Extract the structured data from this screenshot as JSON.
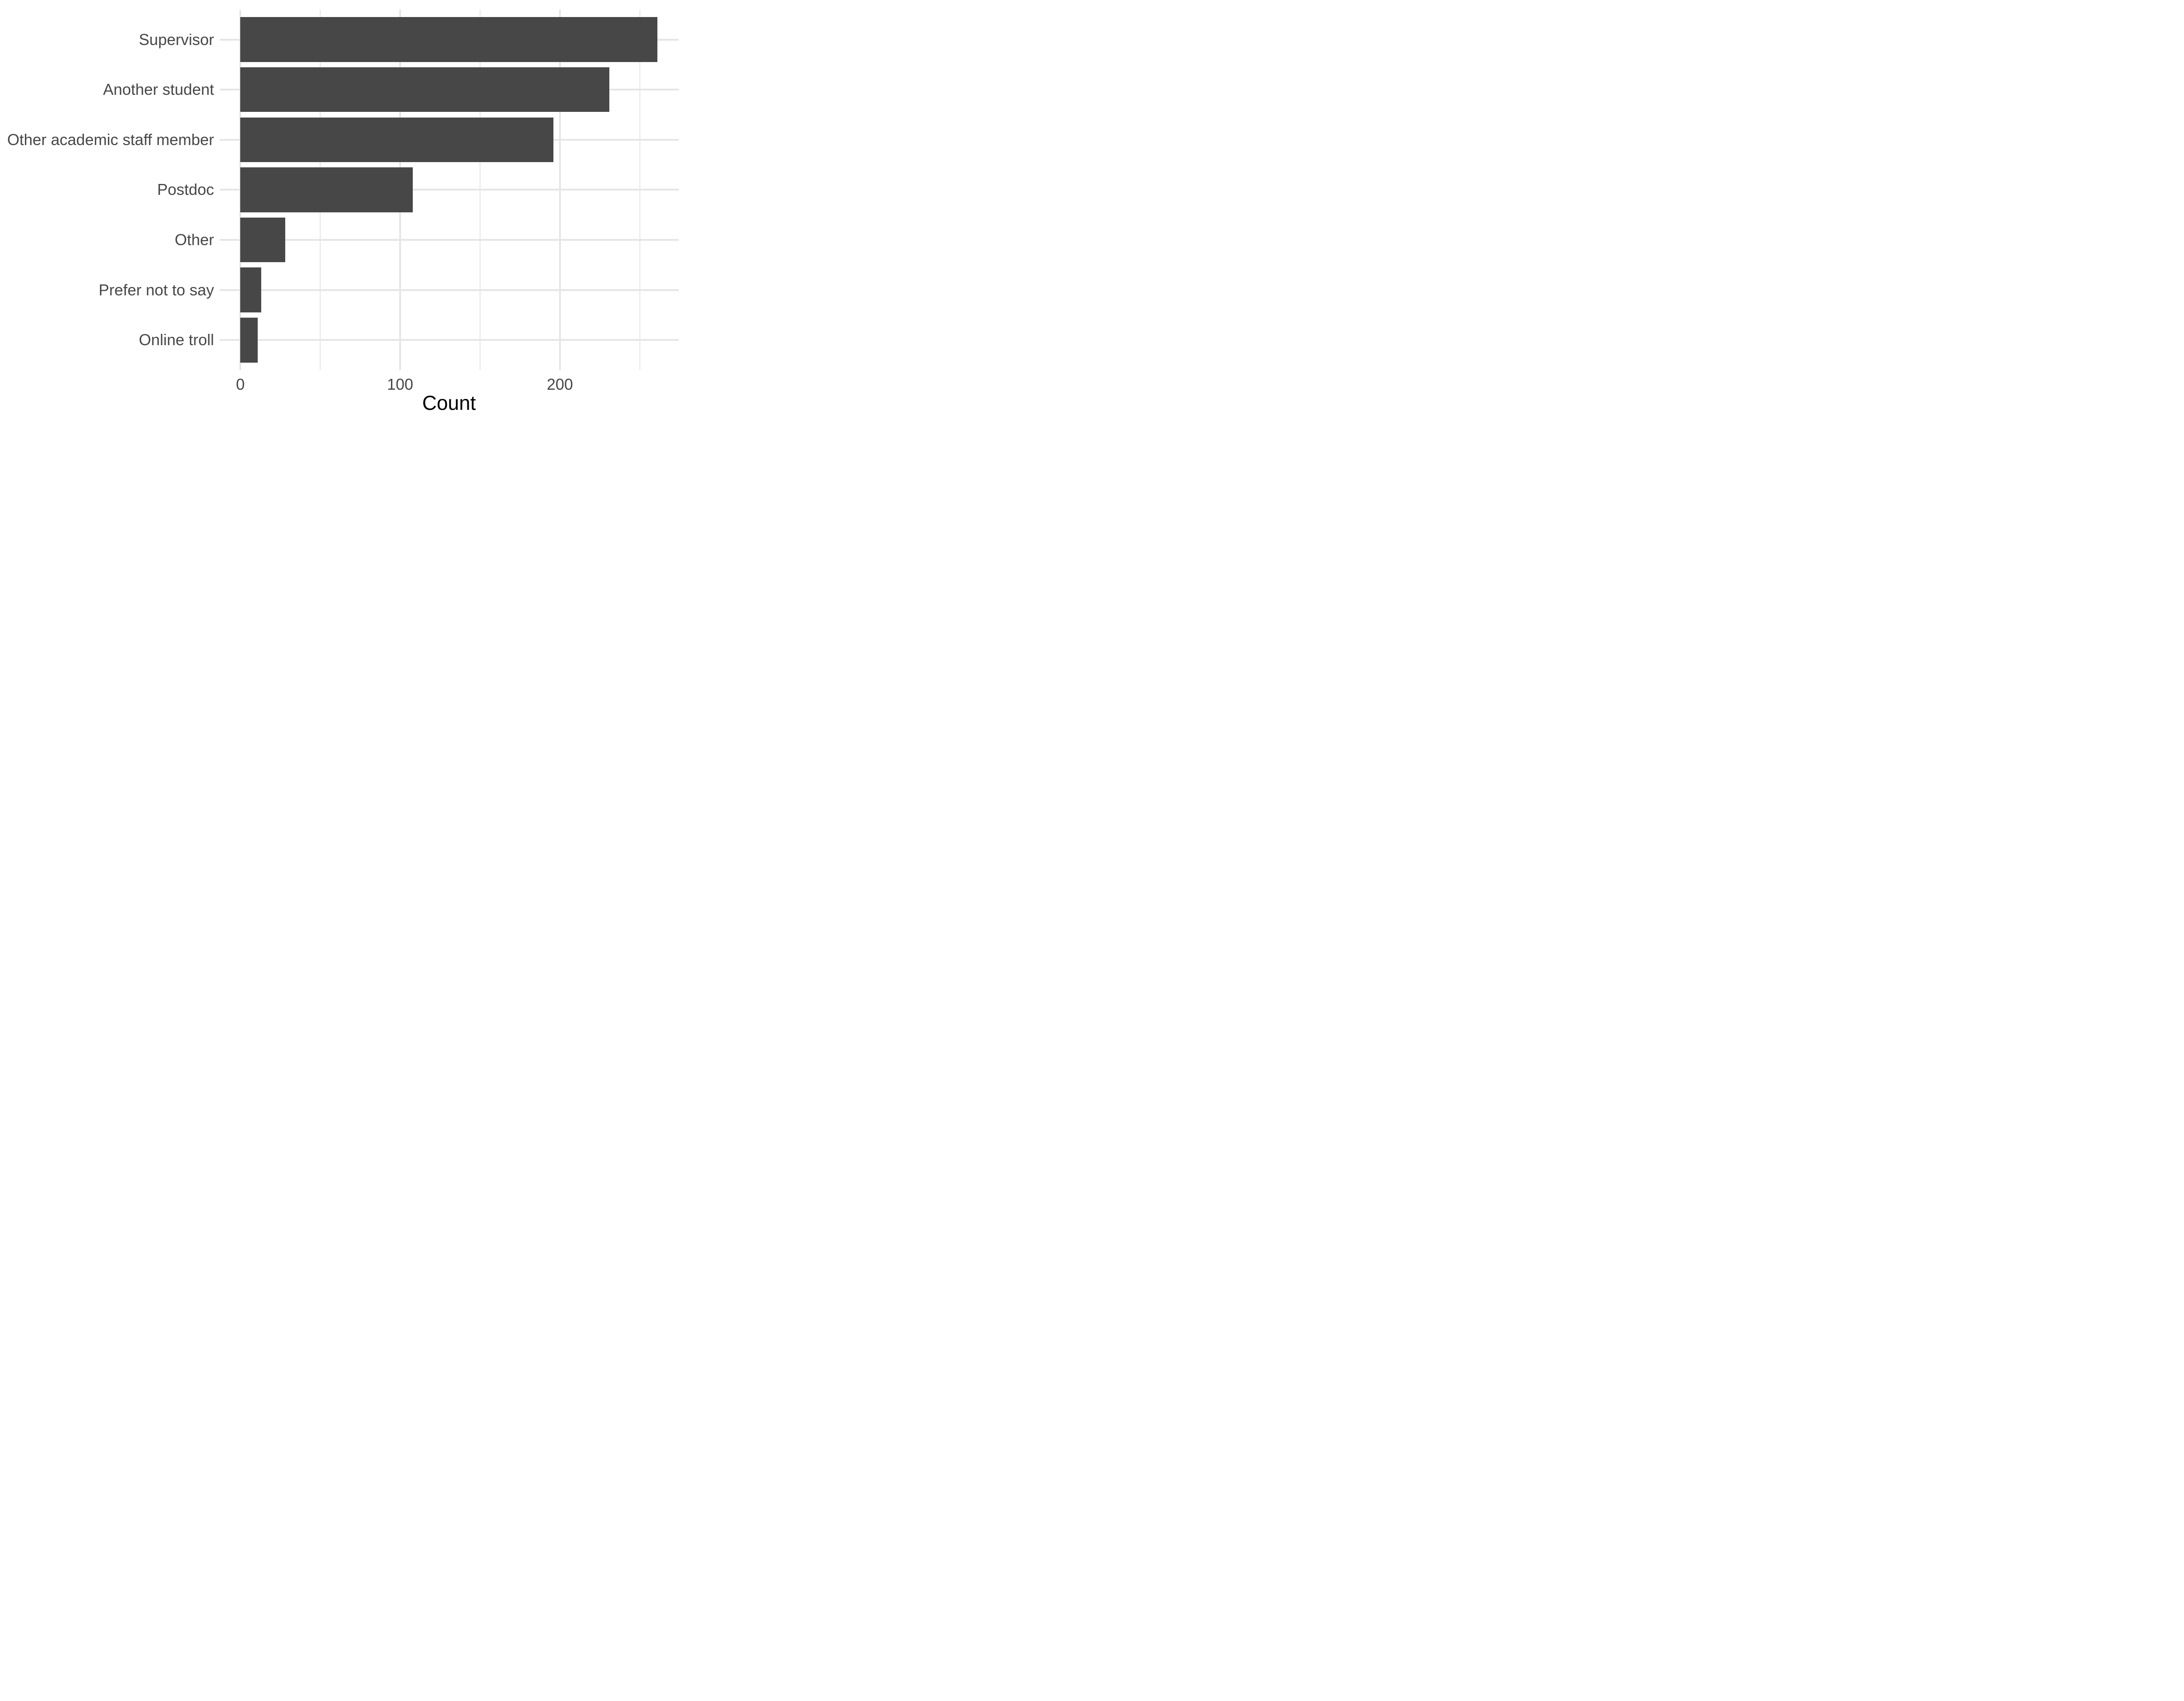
{
  "chart_data": {
    "type": "bar",
    "orientation": "horizontal",
    "title": "",
    "categories": [
      "Supervisor",
      "Another student",
      "Other academic staff member",
      "Postdoc",
      "Other",
      "Prefer not to say",
      "Online troll"
    ],
    "values": [
      261,
      231,
      196,
      108,
      28,
      13,
      11
    ],
    "xlabel": "Count",
    "ylabel": "",
    "x_major_ticks": [
      0,
      100,
      200
    ],
    "x_minor_ticks": [
      50,
      150,
      250
    ],
    "xlim": [
      -13.2,
      274.4
    ],
    "grid": "on",
    "legend": "none",
    "bar_width_fraction": 0.9,
    "colors": {
      "bar_fill": "#474747",
      "grid": "#E5E5E5",
      "axis_text": "#474747",
      "axis_title": "#000000",
      "background": "#FFFFFF"
    }
  }
}
